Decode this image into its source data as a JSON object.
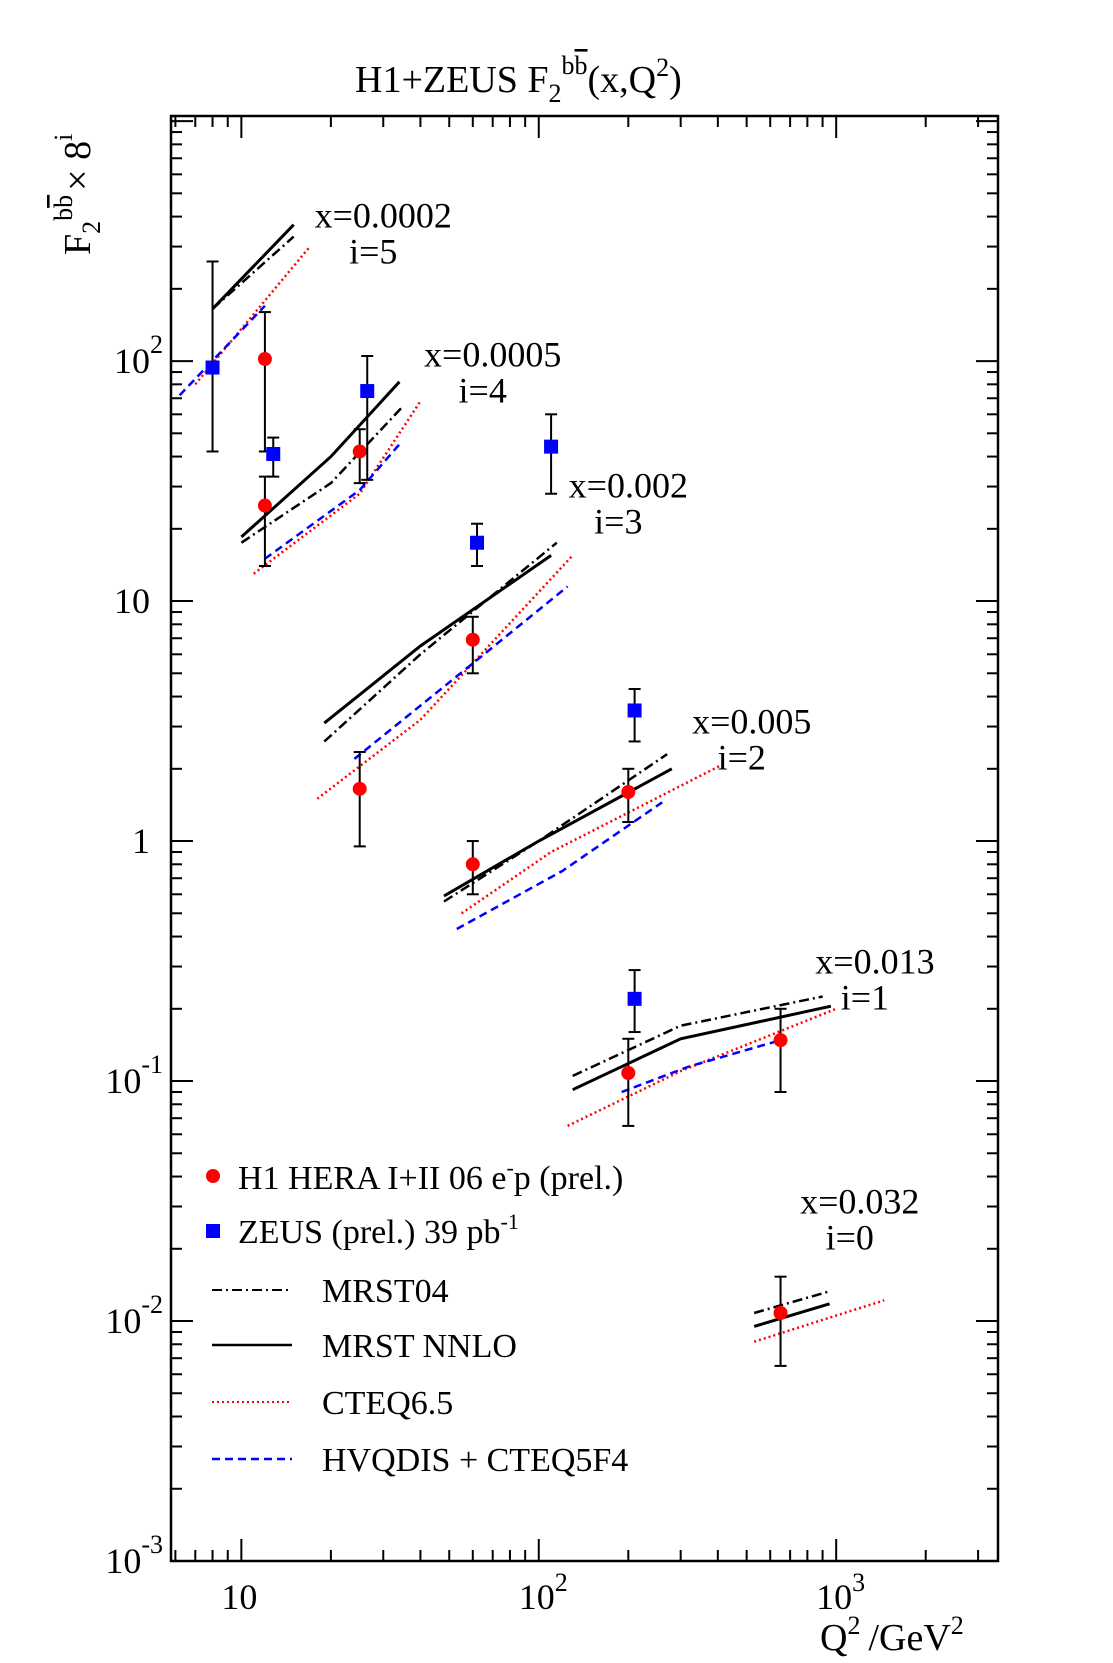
{
  "chart_data": {
    "type": "scatter",
    "title": {
      "main": "H1+ZEUS F",
      "sub": "2",
      "sup": "b",
      "sup_bar": "b",
      "tail": "(x,Q",
      "tail_sup": "2",
      "close": ")"
    },
    "ylabel": {
      "main": "F",
      "sub": "2",
      "sup": "b",
      "sup_bar": "b",
      "times": "× 8",
      "exp": "i"
    },
    "xlabel": {
      "main": "Q",
      "sup": "2",
      "unit": "/GeV",
      "unit_sup": "2"
    },
    "x_scale": "log",
    "y_scale": "log",
    "xlim": [
      5.8,
      3500
    ],
    "ylim": [
      0.001,
      1050
    ],
    "x_ticks": [
      {
        "value": 10,
        "base": "10",
        "exp": ""
      },
      {
        "value": 100,
        "base": "10",
        "exp": "2"
      },
      {
        "value": 1000,
        "base": "10",
        "exp": "3"
      }
    ],
    "y_ticks": [
      {
        "value": 0.001,
        "base": "10",
        "exp": "-3"
      },
      {
        "value": 0.01,
        "base": "10",
        "exp": "-2"
      },
      {
        "value": 0.1,
        "base": "10",
        "exp": "-1"
      },
      {
        "value": 1,
        "base": "1",
        "exp": ""
      },
      {
        "value": 10,
        "base": "10",
        "exp": ""
      },
      {
        "value": 100,
        "base": "10",
        "exp": "2"
      }
    ],
    "bin_labels": [
      {
        "x_text": "x=0.0002",
        "i_text": "i=5",
        "q2": 30,
        "y": 360
      },
      {
        "x_text": "x=0.0005",
        "i_text": "i=4",
        "q2": 70,
        "y": 95
      },
      {
        "x_text": "x=0.002",
        "i_text": "i=3",
        "q2": 200,
        "y": 27
      },
      {
        "x_text": "x=0.005",
        "i_text": "i=2",
        "q2": 520,
        "y": 2.8
      },
      {
        "x_text": "x=0.013",
        "i_text": "i=1",
        "q2": 1350,
        "y": 0.28
      },
      {
        "x_text": "x=0.032",
        "i_text": "i=0",
        "q2": 1200,
        "y": 0.028
      }
    ],
    "series": [
      {
        "name": "H1 HERA I+II 06 e",
        "name_sup": "-",
        "name_tail": "p  (prel.)",
        "color": "#ff0000",
        "marker": "circle",
        "points": [
          {
            "x": 12,
            "y": 102,
            "ylo": 42,
            "yhi": 160
          },
          {
            "x": 12,
            "y": 25,
            "ylo": 14,
            "yhi": 33
          },
          {
            "x": 25,
            "y": 42,
            "ylo": 31,
            "yhi": 52
          },
          {
            "x": 25,
            "y": 1.65,
            "ylo": 0.95,
            "yhi": 2.35
          },
          {
            "x": 60,
            "y": 6.9,
            "ylo": 5.0,
            "yhi": 8.6
          },
          {
            "x": 60,
            "y": 0.8,
            "ylo": 0.6,
            "yhi": 1.0
          },
          {
            "x": 200,
            "y": 1.6,
            "ylo": 1.2,
            "yhi": 2.0
          },
          {
            "x": 200,
            "y": 0.108,
            "ylo": 0.065,
            "yhi": 0.15
          },
          {
            "x": 650,
            "y": 0.148,
            "ylo": 0.09,
            "yhi": 0.2
          },
          {
            "x": 650,
            "y": 0.0108,
            "ylo": 0.0065,
            "yhi": 0.0153
          }
        ]
      },
      {
        "name": "ZEUS (prel.) 39 pb",
        "name_sup": "-1",
        "name_tail": "",
        "color": "#0000ff",
        "marker": "square",
        "points": [
          {
            "x": 8,
            "y": 94,
            "ylo": 42,
            "yhi": 260
          },
          {
            "x": 12.8,
            "y": 41,
            "ylo": 33,
            "yhi": 48
          },
          {
            "x": 26.5,
            "y": 75,
            "ylo": 32,
            "yhi": 105
          },
          {
            "x": 62,
            "y": 17.5,
            "ylo": 14,
            "yhi": 21
          },
          {
            "x": 110,
            "y": 44,
            "ylo": 28,
            "yhi": 60
          },
          {
            "x": 210,
            "y": 3.5,
            "ylo": 2.6,
            "yhi": 4.3
          },
          {
            "x": 210,
            "y": 0.22,
            "ylo": 0.16,
            "yhi": 0.29
          }
        ]
      }
    ],
    "curves": [
      {
        "name": "MRST04",
        "color": "#000000",
        "dash": "10,4,2,4",
        "lines": [
          [
            [
              8,
              165
            ],
            [
              15,
              330
            ]
          ],
          [
            [
              10,
              17.5
            ],
            [
              20,
              31
            ],
            [
              35,
              65
            ]
          ],
          [
            [
              19,
              2.6
            ],
            [
              40,
              6.0
            ],
            [
              115,
              17.5
            ]
          ],
          [
            [
              48,
              0.56
            ],
            [
              100,
              1.0
            ],
            [
              270,
              2.3
            ]
          ],
          [
            [
              130,
              0.105
            ],
            [
              300,
              0.17
            ],
            [
              900,
              0.225
            ]
          ],
          [
            [
              530,
              0.0108
            ],
            [
              950,
              0.0133
            ]
          ]
        ]
      },
      {
        "name": "MRST NNLO",
        "color": "#000000",
        "dash": "",
        "lines": [
          [
            [
              8,
              165
            ],
            [
              15,
              370
            ]
          ],
          [
            [
              10,
              18.5
            ],
            [
              20,
              40
            ],
            [
              34,
              82
            ]
          ],
          [
            [
              19,
              3.1
            ],
            [
              40,
              6.5
            ],
            [
              110,
              15.5
            ]
          ],
          [
            [
              48,
              0.59
            ],
            [
              100,
              1.0
            ],
            [
              280,
              2.0
            ]
          ],
          [
            [
              130,
              0.092
            ],
            [
              300,
              0.15
            ],
            [
              960,
              0.205
            ]
          ],
          [
            [
              530,
              0.0095
            ],
            [
              950,
              0.0118
            ]
          ]
        ]
      },
      {
        "name": "CTEQ6.5",
        "color": "#ff0000",
        "dash": "2,3",
        "lines": [
          [
            [
              7,
              80
            ],
            [
              17,
              300
            ]
          ],
          [
            [
              11,
              13
            ],
            [
              25,
              28
            ],
            [
              40,
              68
            ]
          ],
          [
            [
              18,
              1.5
            ],
            [
              40,
              3.2
            ],
            [
              130,
              15.5
            ]
          ],
          [
            [
              55,
              0.5
            ],
            [
              110,
              0.9
            ],
            [
              420,
              2.1
            ]
          ],
          [
            [
              125,
              0.065
            ],
            [
              300,
              0.11
            ],
            [
              1000,
              0.2
            ]
          ],
          [
            [
              530,
              0.0082
            ],
            [
              1450,
              0.0122
            ]
          ]
        ]
      },
      {
        "name": "HVQDIS + CTEQ5F4",
        "color": "#0000ff",
        "dash": "8,5",
        "lines": [
          [
            [
              6.2,
              72
            ],
            [
              12,
              170
            ]
          ],
          [
            [
              12,
              15
            ],
            [
              25,
              29
            ],
            [
              34,
              45
            ]
          ],
          [
            [
              24,
              2.2
            ],
            [
              60,
              5.5
            ],
            [
              125,
              11.5
            ]
          ],
          [
            [
              53,
              0.43
            ],
            [
              120,
              0.75
            ],
            [
              260,
              1.45
            ]
          ],
          [
            [
              190,
              0.09
            ],
            [
              320,
              0.115
            ],
            [
              650,
              0.148
            ]
          ]
        ]
      }
    ],
    "legend": {
      "location": "bottom-left",
      "line_entries": [
        "MRST04",
        "MRST NNLO",
        "CTEQ6.5",
        "HVQDIS + CTEQ5F4"
      ]
    }
  }
}
